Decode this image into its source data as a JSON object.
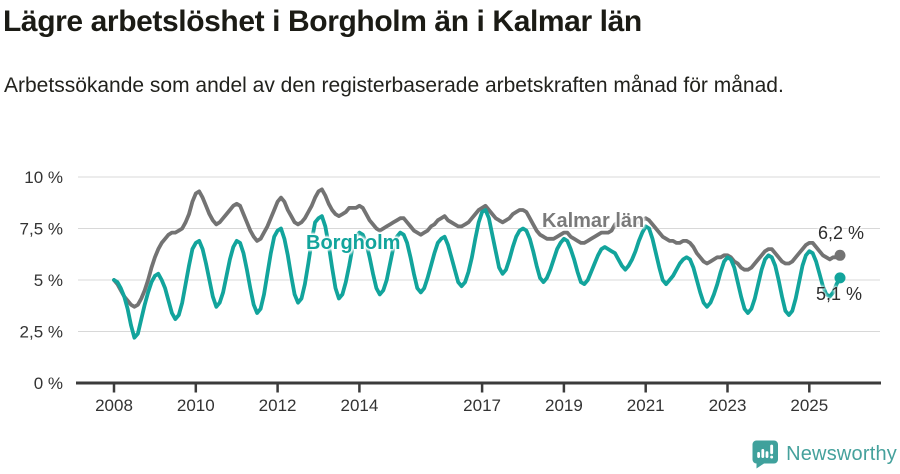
{
  "header": {
    "title": "Lägre arbetslöshet i Borgholm än i Kalmar län",
    "subtitle": "Arbetssökande som andel av den registerbaserade arbetskraften månad för månad."
  },
  "footer": {
    "brand": "Newsworthy"
  },
  "colors": {
    "borgholm": "#12a49c",
    "kalmar": "#737373",
    "grid": "#d8d8d8",
    "axis": "#3b3b3b",
    "tick_label": "#333333",
    "brand_teal": "#3fa19c"
  },
  "chart_data": {
    "type": "line",
    "title": "Lägre arbetslöshet i Borgholm än i Kalmar län",
    "x_unit": "month",
    "x_range": [
      "2008-01",
      "2025-10"
    ],
    "ylim": [
      0,
      10
    ],
    "grid": "horizontal",
    "legend": "inline-labels",
    "y_ticks": [
      {
        "value": 10,
        "label": "10 %"
      },
      {
        "value": 7.5,
        "label": "7,5 %"
      },
      {
        "value": 5,
        "label": "5 %"
      },
      {
        "value": 2.5,
        "label": "2,5 %"
      },
      {
        "value": 0,
        "label": "0 %"
      }
    ],
    "x_ticks": [
      {
        "year": 2008,
        "label": "2008"
      },
      {
        "year": 2010,
        "label": "2010"
      },
      {
        "year": 2012,
        "label": "2012"
      },
      {
        "year": 2014,
        "label": "2014"
      },
      {
        "year": 2017,
        "label": "2017"
      },
      {
        "year": 2019,
        "label": "2019"
      },
      {
        "year": 2021,
        "label": "2021"
      },
      {
        "year": 2023,
        "label": "2023"
      },
      {
        "year": 2025,
        "label": "2025"
      }
    ],
    "series": [
      {
        "name": "Kalmar län",
        "color": "#737373",
        "end_label": "6,2 %",
        "end_value": 6.2,
        "values_by_year": {
          "2008": [
            5.0,
            4.8,
            4.5,
            4.2,
            4.0,
            3.8,
            3.7,
            3.8,
            4.1,
            4.5,
            5.0,
            5.6
          ],
          "2009": [
            6.1,
            6.5,
            6.8,
            7.0,
            7.2,
            7.3,
            7.3,
            7.4,
            7.5,
            7.8,
            8.2,
            8.8
          ],
          "2010": [
            9.2,
            9.3,
            9.0,
            8.6,
            8.2,
            7.9,
            7.7,
            7.8,
            8.0,
            8.2,
            8.4,
            8.6
          ],
          "2011": [
            8.7,
            8.6,
            8.2,
            7.8,
            7.4,
            7.1,
            6.9,
            7.0,
            7.3,
            7.6,
            8.0,
            8.4
          ],
          "2012": [
            8.8,
            9.0,
            8.8,
            8.4,
            8.1,
            7.8,
            7.7,
            7.8,
            8.0,
            8.3,
            8.6,
            9.0
          ],
          "2013": [
            9.3,
            9.4,
            9.1,
            8.7,
            8.4,
            8.2,
            8.1,
            8.2,
            8.3,
            8.5,
            8.5,
            8.5
          ],
          "2014": [
            8.6,
            8.5,
            8.2,
            7.9,
            7.7,
            7.5,
            7.4,
            7.5,
            7.6,
            7.7,
            7.8,
            7.9
          ],
          "2015": [
            8.0,
            8.0,
            7.8,
            7.6,
            7.4,
            7.3,
            7.2,
            7.3,
            7.4,
            7.6,
            7.7,
            7.9
          ],
          "2016": [
            8.0,
            8.1,
            7.9,
            7.8,
            7.7,
            7.6,
            7.6,
            7.7,
            7.8,
            8.0,
            8.2,
            8.4
          ],
          "2017": [
            8.5,
            8.6,
            8.4,
            8.2,
            8.0,
            7.9,
            7.8,
            7.9,
            8.0,
            8.2,
            8.3,
            8.4
          ],
          "2018": [
            8.4,
            8.3,
            8.0,
            7.7,
            7.4,
            7.2,
            7.1,
            7.0,
            7.0,
            7.0,
            7.1,
            7.2
          ],
          "2019": [
            7.3,
            7.3,
            7.1,
            7.0,
            6.9,
            6.8,
            6.8,
            6.9,
            7.0,
            7.1,
            7.2,
            7.3
          ],
          "2020": [
            7.3,
            7.3,
            7.4,
            7.7,
            7.8,
            7.9,
            7.8,
            7.9,
            7.9,
            7.8,
            7.8,
            7.9
          ],
          "2021": [
            8.0,
            7.9,
            7.7,
            7.5,
            7.3,
            7.1,
            7.0,
            6.9,
            6.9,
            6.8,
            6.8,
            6.9
          ],
          "2022": [
            6.9,
            6.8,
            6.6,
            6.3,
            6.1,
            5.9,
            5.8,
            5.9,
            6.0,
            6.1,
            6.1,
            6.2
          ],
          "2023": [
            6.2,
            6.1,
            5.9,
            5.8,
            5.6,
            5.5,
            5.5,
            5.6,
            5.8,
            6.0,
            6.2,
            6.4
          ],
          "2024": [
            6.5,
            6.5,
            6.3,
            6.1,
            5.9,
            5.8,
            5.8,
            5.9,
            6.1,
            6.3,
            6.5,
            6.7
          ],
          "2025": [
            6.8,
            6.8,
            6.6,
            6.4,
            6.2,
            6.1,
            6.0,
            6.1,
            6.1,
            6.2
          ]
        }
      },
      {
        "name": "Borgholm",
        "color": "#12a49c",
        "end_label": "5,1 %",
        "end_value": 5.1,
        "values_by_year": {
          "2008": [
            5.0,
            4.9,
            4.6,
            4.2,
            3.6,
            2.8,
            2.2,
            2.4,
            3.1,
            3.8,
            4.4,
            4.9
          ],
          "2009": [
            5.2,
            5.3,
            5.0,
            4.6,
            4.0,
            3.4,
            3.1,
            3.3,
            3.9,
            4.8,
            5.7,
            6.5
          ],
          "2010": [
            6.8,
            6.9,
            6.5,
            5.8,
            5.0,
            4.2,
            3.7,
            3.9,
            4.4,
            5.2,
            6.0,
            6.6
          ],
          "2011": [
            6.9,
            6.8,
            6.3,
            5.5,
            4.6,
            3.8,
            3.4,
            3.6,
            4.3,
            5.3,
            6.3,
            7.1
          ],
          "2012": [
            7.4,
            7.5,
            7.0,
            6.2,
            5.2,
            4.3,
            3.9,
            4.1,
            4.8,
            5.8,
            6.9,
            7.8
          ],
          "2013": [
            8.0,
            8.1,
            7.6,
            6.7,
            5.6,
            4.6,
            4.1,
            4.3,
            4.9,
            5.7,
            6.6,
            7.1
          ],
          "2014": [
            7.3,
            7.2,
            6.8,
            6.1,
            5.3,
            4.6,
            4.3,
            4.5,
            5.0,
            5.8,
            6.6,
            7.1
          ],
          "2015": [
            7.3,
            7.2,
            6.8,
            6.1,
            5.3,
            4.6,
            4.4,
            4.6,
            5.1,
            5.7,
            6.3,
            6.8
          ],
          "2016": [
            7.0,
            7.1,
            6.7,
            6.1,
            5.5,
            4.9,
            4.7,
            4.9,
            5.4,
            6.1,
            7.0,
            7.8
          ],
          "2017": [
            8.3,
            8.4,
            8.0,
            7.2,
            6.4,
            5.6,
            5.3,
            5.5,
            6.0,
            6.6,
            7.1,
            7.4
          ],
          "2018": [
            7.5,
            7.4,
            7.0,
            6.4,
            5.7,
            5.1,
            4.9,
            5.1,
            5.5,
            6.0,
            6.5,
            6.8
          ],
          "2019": [
            7.0,
            6.9,
            6.5,
            6.0,
            5.4,
            4.9,
            4.8,
            5.0,
            5.4,
            5.8,
            6.2,
            6.5
          ],
          "2020": [
            6.6,
            6.5,
            6.4,
            6.3,
            6.0,
            5.7,
            5.5,
            5.7,
            6.0,
            6.4,
            6.9,
            7.3
          ],
          "2021": [
            7.6,
            7.5,
            7.0,
            6.3,
            5.6,
            5.0,
            4.8,
            5.0,
            5.2,
            5.5,
            5.8,
            6.0
          ],
          "2022": [
            6.1,
            6.0,
            5.6,
            5.0,
            4.4,
            3.9,
            3.7,
            3.9,
            4.3,
            4.8,
            5.4,
            5.9
          ],
          "2023": [
            6.1,
            6.0,
            5.6,
            4.9,
            4.2,
            3.6,
            3.4,
            3.6,
            4.1,
            4.8,
            5.5,
            6.0
          ],
          "2024": [
            6.2,
            6.1,
            5.7,
            5.0,
            4.2,
            3.5,
            3.3,
            3.5,
            4.1,
            4.9,
            5.7,
            6.2
          ],
          "2025": [
            6.4,
            6.3,
            5.9,
            5.3,
            4.7,
            4.3,
            4.2,
            4.4,
            4.8,
            5.1
          ]
        }
      }
    ]
  }
}
